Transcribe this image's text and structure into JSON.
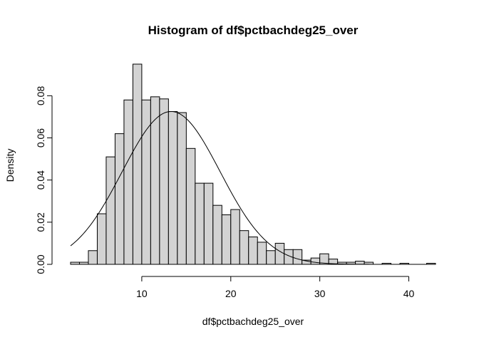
{
  "chart_data": {
    "type": "bar",
    "title": "Histogram of df$pctbachdeg25_over",
    "xlabel": "df$pctbachdeg25_over",
    "ylabel": "Density",
    "bin_width": 1,
    "bins_start": 2,
    "xlim": [
      2,
      43
    ],
    "ylim": [
      0,
      0.095
    ],
    "x_ticks": [
      10,
      20,
      30,
      40
    ],
    "y_ticks": [
      0.0,
      0.02,
      0.04,
      0.06,
      0.08
    ],
    "y_tick_labels": [
      "0.00",
      "0.02",
      "0.04",
      "0.06",
      "0.08"
    ],
    "densities": [
      0.001,
      0.001,
      0.0065,
      0.024,
      0.051,
      0.062,
      0.078,
      0.095,
      0.078,
      0.0795,
      0.0785,
      0.0725,
      0.072,
      0.055,
      0.0385,
      0.0385,
      0.028,
      0.0235,
      0.026,
      0.016,
      0.013,
      0.0105,
      0.0065,
      0.01,
      0.007,
      0.007,
      0.002,
      0.003,
      0.005,
      0.0025,
      0.001,
      0.001,
      0.0015,
      0.001,
      0.0,
      0.0005,
      0.0,
      0.0005,
      0.0,
      0.0,
      0.0005
    ],
    "normal_curve": {
      "mean": 13.3,
      "sd": 5.5
    },
    "grid": false,
    "legend": "none"
  }
}
